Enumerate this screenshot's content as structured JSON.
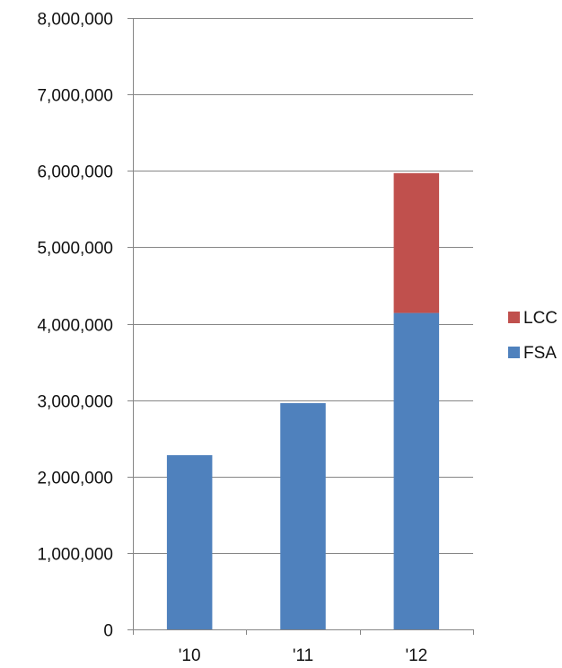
{
  "chart_data": {
    "type": "bar",
    "stacked": true,
    "categories": [
      "'10",
      "'11",
      "'12"
    ],
    "series": [
      {
        "name": "FSA",
        "values": [
          2280000,
          2960000,
          4140000
        ],
        "color": "#4F81BD"
      },
      {
        "name": "LCC",
        "values": [
          0,
          0,
          1830000
        ],
        "color": "#C0504D"
      }
    ],
    "title": "",
    "xlabel": "",
    "ylabel": "",
    "ylim": [
      0,
      8000000
    ],
    "yticks": [
      "0",
      "1,000,000",
      "2,000,000",
      "3,000,000",
      "4,000,000",
      "5,000,000",
      "6,000,000",
      "7,000,000",
      "8,000,000"
    ],
    "grid": true,
    "legend": {
      "placement": "right",
      "items": [
        {
          "label": "LCC",
          "color": "#C0504D"
        },
        {
          "label": "FSA",
          "color": "#4F81BD"
        }
      ]
    }
  }
}
